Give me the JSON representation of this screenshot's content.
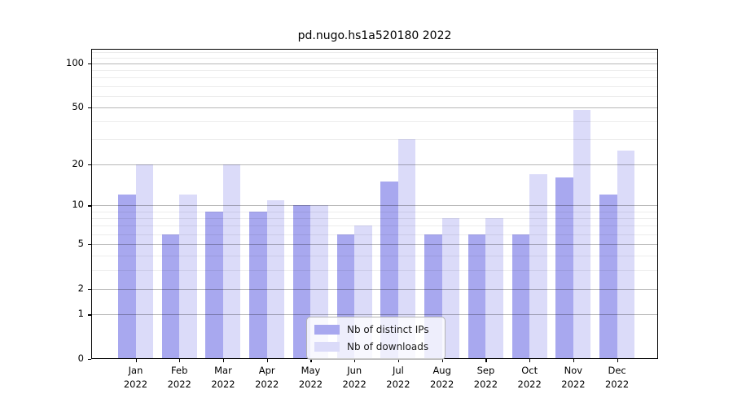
{
  "title": "pd.nugo.hs1a520180 2022",
  "background_color": "#ffffff",
  "chart_data": {
    "type": "bar",
    "title": "pd.nugo.hs1a520180 2022",
    "categories": [
      "Jan 2022",
      "Feb 2022",
      "Mar 2022",
      "Apr 2022",
      "May 2022",
      "Jun 2022",
      "Jul 2022",
      "Aug 2022",
      "Sep 2022",
      "Oct 2022",
      "Nov 2022",
      "Dec 2022"
    ],
    "series": [
      {
        "name": "Nb of distinct IPs",
        "key": "distinct-ips",
        "color": "#a8a8ef",
        "values": [
          12,
          6,
          9,
          9,
          10,
          6,
          15,
          6,
          6,
          6,
          16,
          12
        ]
      },
      {
        "name": "Nb of downloads",
        "key": "downloads",
        "color": "#dbdbf9",
        "values": [
          20,
          12,
          20,
          11,
          10,
          7,
          30,
          8,
          8,
          17,
          48,
          25
        ]
      }
    ],
    "xlabel": "",
    "ylabel": "",
    "yscale": "log1p",
    "ylim": [
      0,
      126
    ],
    "yticks": [
      100,
      50,
      20,
      10,
      5,
      2,
      1,
      0
    ],
    "minor_gridlines": [
      3,
      4,
      6,
      7,
      8,
      9,
      30,
      40,
      60,
      70,
      80,
      90,
      110,
      120
    ],
    "grid": true,
    "legend": {
      "position": "lower center",
      "entries": [
        "Nb of distinct IPs",
        "Nb of downloads"
      ]
    },
    "grid_major_color": "#b4b4b4",
    "grid_minor_color": "#ececec"
  }
}
